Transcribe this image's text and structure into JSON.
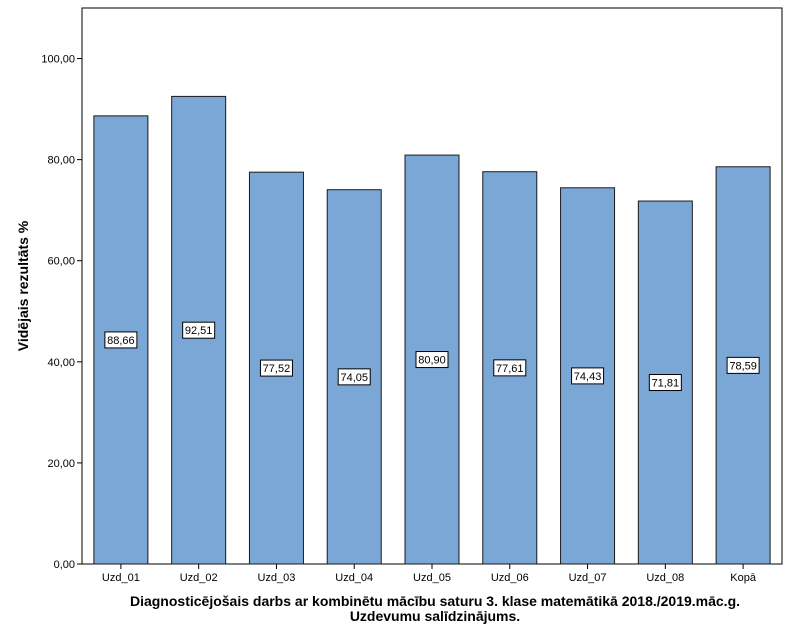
{
  "chart_data": {
    "type": "bar",
    "categories": [
      "Uzd_01",
      "Uzd_02",
      "Uzd_03",
      "Uzd_04",
      "Uzd_05",
      "Uzd_06",
      "Uzd_07",
      "Uzd_08",
      "Kopā"
    ],
    "values": [
      88.66,
      92.51,
      77.52,
      74.05,
      80.9,
      77.61,
      74.43,
      71.81,
      78.59
    ],
    "data_labels": [
      "88,66",
      "92,51",
      "77,52",
      "74,05",
      "80,90",
      "77,61",
      "74,43",
      "71,81",
      "78,59"
    ],
    "ylabel": "Vidējais rezultāts %",
    "xlabel_line1": "Diagnosticējošais darbs ar kombinētu mācību saturu 3. klase matemātikā 2018./2019.māc.g.",
    "xlabel_line2": "Uzdevumu salīdzinājums.",
    "ylim": [
      0,
      110
    ],
    "yticks": [
      0,
      20,
      40,
      60,
      80,
      100
    ],
    "ytick_labels": [
      "0,00",
      "20,00",
      "40,00",
      "60,00",
      "80,00",
      "100,00"
    ],
    "grid": false,
    "colors": {
      "bar_fill": "#7BA7D6",
      "bar_stroke": "#1A1A1A",
      "axis": "#000000"
    }
  }
}
